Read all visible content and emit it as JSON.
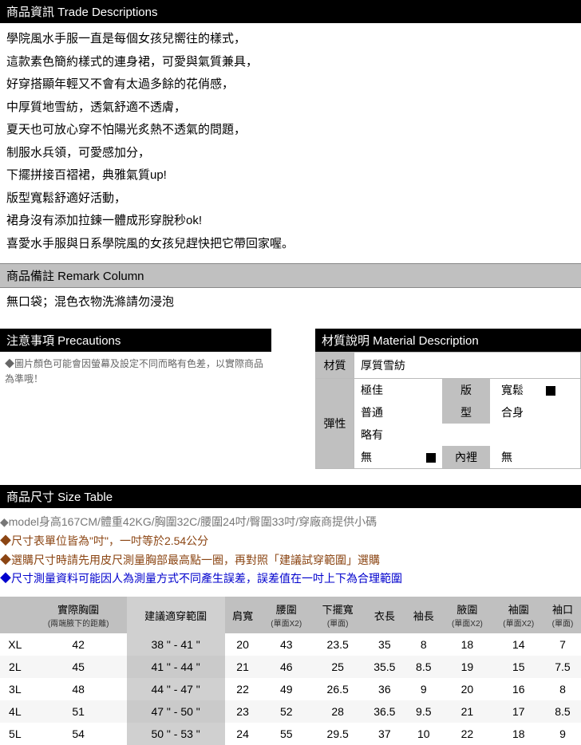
{
  "trade": {
    "header": "商品資訊 Trade Descriptions",
    "lines": [
      "學院風水手服一直是每個女孩兒嚮往的樣式，",
      "這款素色簡約樣式的連身裙，可愛與氣質兼具，",
      "好穿搭顯年輕又不會有太過多餘的花俏感，",
      "中厚質地雪紡，透氣舒適不透膚，",
      "夏天也可放心穿不怕陽光炙熱不透氣的問題，",
      "制服水兵領，可愛感加分，",
      "下擺拼接百褶裙，典雅氣質up!",
      "版型寬鬆舒適好活動，",
      "裙身沒有添加拉鍊一體成形穿脫秒ok!",
      "喜愛水手服與日系學院風的女孩兒趕快把它帶回家喔。"
    ]
  },
  "remark": {
    "header": "商品備註 Remark Column",
    "body": "無口袋；混色衣物洗滌請勿浸泡"
  },
  "precautions": {
    "header": "注意事項 Precautions",
    "body": "◆圖片顏色可能會因螢幕及設定不同而略有色差，以實際商品為準哦！"
  },
  "material": {
    "header": "材質說明 Material Description",
    "mat_label": "材質",
    "mat_value": "厚質雪紡",
    "elastic_label": "彈性",
    "elastic_opts": {
      "best": "極佳",
      "normal": "普通",
      "slight": "略有",
      "none": "無"
    },
    "fit_label": "版型",
    "fit_opts": {
      "loose": "寬鬆",
      "fit": "合身"
    },
    "lining_label": "內裡",
    "lining_value": "無"
  },
  "theme": {
    "selected_marker": "■"
  },
  "size": {
    "header": "商品尺寸 Size Table",
    "notes": [
      {
        "cls": "note-grey",
        "text": "◆model身高167CM/體重42KG/胸圍32C/腰圍24吋/臀圍33吋/穿廠商提供小碼"
      },
      {
        "cls": "note-brown",
        "text": "◆尺寸表單位皆為\"吋\"，一吋等於2.54公分"
      },
      {
        "cls": "note-brown",
        "text": "◆選購尺寸時請先用皮尺測量胸部最高點一圈，再對照「建議試穿範圍」選購"
      },
      {
        "cls": "note-blue",
        "text": "◆尺寸測量資料可能因人為測量方式不同產生誤差，誤差值在一吋上下為合理範圍"
      }
    ],
    "columns": [
      {
        "main": "",
        "sub": ""
      },
      {
        "main": "實際胸圍",
        "sub": "(兩端腋下的距離)"
      },
      {
        "main": "建議適穿範圍",
        "sub": ""
      },
      {
        "main": "肩寬",
        "sub": ""
      },
      {
        "main": "腰圍",
        "sub": "(單面X2)"
      },
      {
        "main": "下擺寬",
        "sub": "(單面)"
      },
      {
        "main": "衣長",
        "sub": ""
      },
      {
        "main": "袖長",
        "sub": ""
      },
      {
        "main": "腋圍",
        "sub": "(單面X2)"
      },
      {
        "main": "袖圍",
        "sub": "(單面X2)"
      },
      {
        "main": "袖口",
        "sub": "(單面)"
      }
    ],
    "rows": [
      [
        "XL",
        "42",
        "38 \" - 41 \"",
        "20",
        "43",
        "23.5",
        "35",
        "8",
        "18",
        "14",
        "7"
      ],
      [
        "2L",
        "45",
        "41 \" - 44 \"",
        "21",
        "46",
        "25",
        "35.5",
        "8.5",
        "19",
        "15",
        "7.5"
      ],
      [
        "3L",
        "48",
        "44 \" - 47 \"",
        "22",
        "49",
        "26.5",
        "36",
        "9",
        "20",
        "16",
        "8"
      ],
      [
        "4L",
        "51",
        "47 \" - 50 \"",
        "23",
        "52",
        "28",
        "36.5",
        "9.5",
        "21",
        "17",
        "8.5"
      ],
      [
        "5L",
        "54",
        "50 \" - 53 \"",
        "24",
        "55",
        "29.5",
        "37",
        "10",
        "22",
        "18",
        "9"
      ]
    ]
  }
}
